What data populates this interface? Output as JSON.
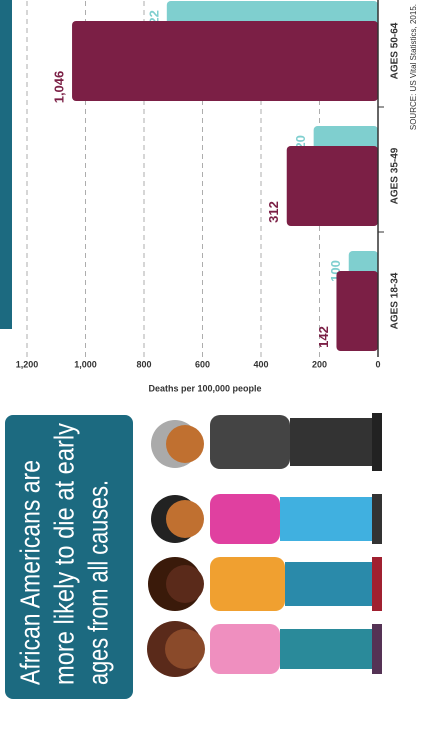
{
  "chart_data": {
    "type": "bar",
    "title_lines": [
      "African Americans are",
      "more likely to die at early",
      "ages from all causes."
    ],
    "y_label": "Deaths per 100,000 people",
    "source": "SOURCE: US Vital Statistics, 2015.",
    "categories": [
      "AGES 18-34",
      "AGES 35-49",
      "AGES 50-64"
    ],
    "series": [
      {
        "color": "#7fcfcf",
        "values": [
          100,
          220,
          722
        ]
      },
      {
        "color": "#7b1f45",
        "values": [
          142,
          312,
          1046
        ],
        "value_labels": [
          "142",
          "312",
          "1,046"
        ]
      }
    ],
    "ylim": [
      0,
      1200
    ],
    "yticks": [
      0,
      200,
      400,
      600,
      800,
      {
        "value": 1000,
        "label": "1,000"
      },
      {
        "value": 1200,
        "label": "1,200"
      }
    ],
    "grid": true
  }
}
